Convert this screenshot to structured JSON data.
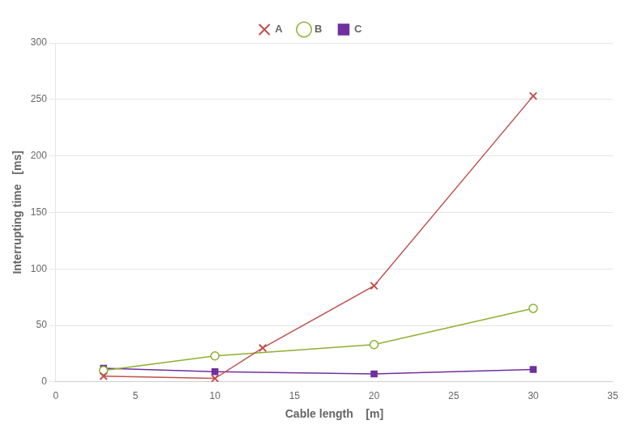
{
  "chart_data": {
    "type": "line",
    "x_label": "Cable length    [m]",
    "y_label": "Interrupting time   [ms]",
    "series": [
      {
        "name": "A",
        "color": "#c0504d",
        "marker": "x",
        "x": [
          3,
          10,
          13,
          20,
          30
        ],
        "values": [
          5,
          3,
          30,
          85,
          253
        ]
      },
      {
        "name": "B",
        "color": "#8db030",
        "marker": "open_circle",
        "x": [
          3,
          10,
          20,
          30
        ],
        "values": [
          10,
          23,
          33,
          65
        ]
      },
      {
        "name": "C",
        "color": "#7030a0",
        "marker": "square",
        "x": [
          3,
          10,
          20,
          30
        ],
        "values": [
          12,
          9,
          7,
          11
        ]
      }
    ],
    "xlim": [
      0,
      35
    ],
    "ylim": [
      0,
      300
    ],
    "xticks": [
      0,
      5,
      10,
      15,
      20,
      25,
      30,
      35
    ],
    "yticks": [
      0,
      50,
      100,
      150,
      200,
      250,
      300
    ],
    "grid": "y",
    "legend": "top"
  }
}
